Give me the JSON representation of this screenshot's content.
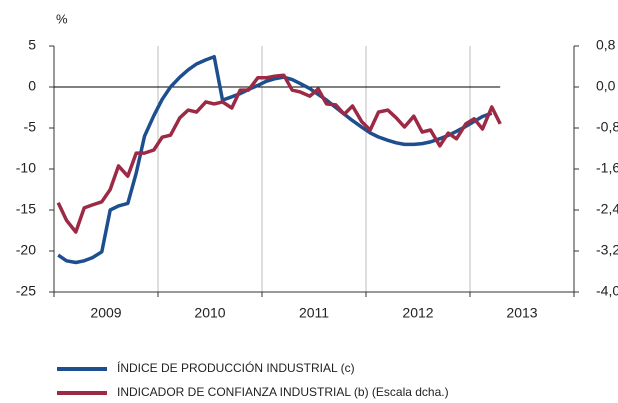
{
  "chart_data": {
    "type": "line",
    "y_unit_label": "%",
    "x": [
      2009.04,
      2009.12,
      2009.21,
      2009.29,
      2009.37,
      2009.46,
      2009.54,
      2009.62,
      2009.71,
      2009.79,
      2009.87,
      2009.96,
      2010.04,
      2010.12,
      2010.21,
      2010.29,
      2010.37,
      2010.46,
      2010.54,
      2010.62,
      2010.71,
      2010.79,
      2010.87,
      2010.96,
      2011.04,
      2011.12,
      2011.21,
      2011.29,
      2011.37,
      2011.46,
      2011.54,
      2011.62,
      2011.71,
      2011.79,
      2011.87,
      2011.96,
      2012.04,
      2012.12,
      2012.21,
      2012.29,
      2012.37,
      2012.46,
      2012.54,
      2012.62,
      2012.71,
      2012.79,
      2012.87,
      2012.96,
      2013.04,
      2013.12,
      2013.21,
      2013.29
    ],
    "xlim": [
      2009,
      2014
    ],
    "xticks": [
      2009,
      2010,
      2011,
      2012,
      2013,
      2014
    ],
    "year_labels": [
      "2009",
      "2010",
      "2011",
      "2012",
      "2013"
    ],
    "ylim": [
      -25,
      5
    ],
    "yticks": [
      5,
      0,
      -5,
      -10,
      -15,
      -20,
      -25
    ],
    "y2lim": [
      -4.0,
      0.8
    ],
    "y2ticks": [
      {
        "value": 0.8,
        "label": "0,8"
      },
      {
        "value": 0,
        "label": "0,0"
      },
      {
        "value": -0.8,
        "label": "-0,8"
      },
      {
        "value": -1.6,
        "label": "-1,6"
      },
      {
        "value": -2.4,
        "label": "-2,4"
      },
      {
        "value": -3.2,
        "label": "-3,2"
      },
      {
        "value": -4.0,
        "label": "-4,0"
      }
    ],
    "series": [
      {
        "name": "ÍNDICE DE PRODUCCIÓN INDUSTRIAL (c)",
        "color": "#1d4f8f",
        "axis": "y",
        "values": [
          -20.5,
          -21.2,
          -21.4,
          -21.2,
          -20.8,
          -20.1,
          -15,
          -14.5,
          -14.2,
          -10.5,
          -6,
          -3.5,
          -1.5,
          0,
          1.2,
          2.1,
          2.8,
          3.3,
          3.7,
          -1.6,
          -1.2,
          -0.8,
          -0.3,
          0.2,
          0.7,
          1.0,
          1.2,
          0.9,
          0.4,
          -0.2,
          -0.9,
          -1.6,
          -2.5,
          -3.3,
          -4.1,
          -4.9,
          -5.6,
          -6.1,
          -6.5,
          -6.8,
          -7.0,
          -7.0,
          -6.9,
          -6.7,
          -6.3,
          -5.9,
          -5.4,
          -4.8,
          -4.2,
          -3.6,
          -3.2,
          null
        ]
      },
      {
        "name": "INDICADOR DE CONFIANZA INDUSTRIAL (b) (Escala dcha.)",
        "color": "#9c2a45",
        "axis": "y2",
        "values": [
          -2.26,
          -2.6,
          -2.83,
          -2.36,
          -2.3,
          -2.24,
          -2.0,
          -1.54,
          -1.74,
          -1.29,
          -1.29,
          -1.23,
          -0.98,
          -0.94,
          -0.6,
          -0.45,
          -0.49,
          -0.29,
          -0.33,
          -0.29,
          -0.41,
          -0.06,
          -0.06,
          0.18,
          0.18,
          0.21,
          0.23,
          -0.06,
          -0.1,
          -0.18,
          -0.04,
          -0.33,
          -0.35,
          -0.53,
          -0.37,
          -0.68,
          -0.84,
          -0.49,
          -0.45,
          -0.6,
          -0.78,
          -0.57,
          -0.88,
          -0.84,
          -1.15,
          -0.9,
          -1.01,
          -0.72,
          -0.62,
          -0.82,
          -0.39,
          -0.72
        ]
      }
    ]
  }
}
